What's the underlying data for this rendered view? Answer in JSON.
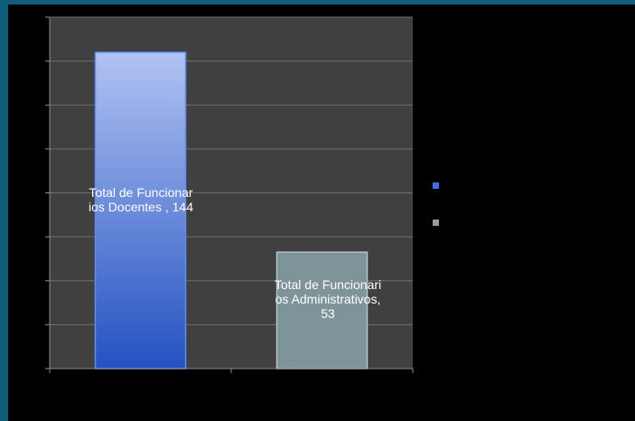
{
  "chart_data": {
    "type": "bar",
    "categories": [
      "Total de Funcionarios Docentes",
      "Total de Funcionarios Administrativos"
    ],
    "values": [
      144,
      53
    ],
    "data_labels": [
      "Total de Funcionarios Docentes  , 144",
      "Total de Funcionarios Administrativos, 53"
    ],
    "ylim": [
      0,
      160
    ],
    "grid": true,
    "legend": "right",
    "legend_entries": [
      "",
      ""
    ]
  },
  "colors": {
    "slide_border": "#0e5e7b",
    "slide_background": "#000000",
    "plot_background": "#404040",
    "gridline": "#6e6e6e",
    "axis": "#8c8c8c",
    "bar_1_top": "#b1c3f2",
    "bar_1_bottom": "#2452c2",
    "bar_1_outline": "#5f8df0",
    "bar_2": "#7f9499",
    "bar_2_outline": "#b4c4c8",
    "legend_1": "#3f6fe0",
    "legend_2": "#8a9ea3"
  }
}
